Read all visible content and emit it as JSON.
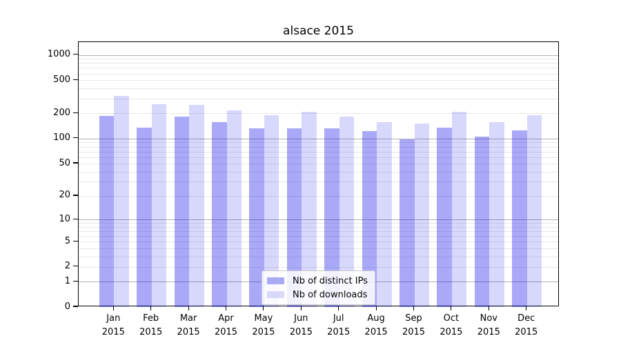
{
  "chart_data": {
    "type": "bar",
    "title": "alsace 2015",
    "x_categories": [
      "Jan",
      "Feb",
      "Mar",
      "Apr",
      "May",
      "Jun",
      "Jul",
      "Aug",
      "Sep",
      "Oct",
      "Nov",
      "Dec"
    ],
    "x_year_label": "2015",
    "series": [
      {
        "name": "Nb of distinct IPs",
        "bar_color": "rgba(10,10,235,0.35)",
        "legend_color": "#a9a9f4",
        "values": [
          186,
          135,
          182,
          158,
          133,
          134,
          133,
          123,
          97,
          135,
          106,
          125
        ]
      },
      {
        "name": "Nb of downloads",
        "bar_color": "rgba(10,10,235,0.16)",
        "legend_color": "#d9d9f9",
        "values": [
          325,
          258,
          253,
          218,
          189,
          209,
          184,
          158,
          151,
          209,
          157,
          191
        ]
      }
    ],
    "y_scale": "log1p",
    "y_tick_labels": [
      0,
      1,
      2,
      5,
      10,
      20,
      50,
      100,
      200,
      500,
      1000
    ],
    "y_gridlines_major": [
      1,
      10,
      100,
      1000
    ],
    "y_gridlines_minor": [
      2,
      3,
      4,
      5,
      6,
      7,
      8,
      9,
      20,
      30,
      40,
      50,
      60,
      70,
      80,
      90,
      200,
      300,
      400,
      500,
      600,
      700,
      800,
      900
    ],
    "y_max": 1420,
    "ylim": [
      0,
      1420
    ],
    "grid": true,
    "legend": {
      "position": "lower-center"
    },
    "colors": {
      "axis": "#000000",
      "gridline_major": "#b0b0b0",
      "gridline_minor": "#e7e7e7",
      "background": "#ffffff"
    }
  }
}
